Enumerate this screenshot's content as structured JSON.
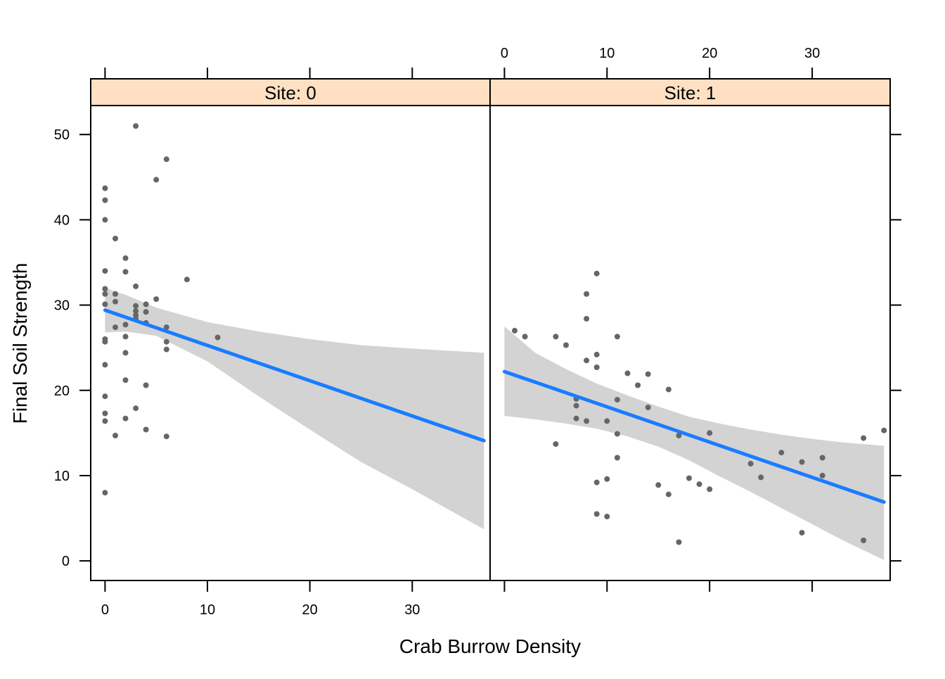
{
  "chart_data": {
    "type": "scatter",
    "xlabel": "Crab Burrow Density",
    "ylabel": "Final Soil Strength",
    "xlim": [
      -1.4,
      37.6
    ],
    "ylim": [
      -2.3,
      53.4
    ],
    "x_ticks": [
      0,
      10,
      20,
      30
    ],
    "y_ticks": [
      0,
      10,
      20,
      30,
      40,
      50
    ],
    "grid": false,
    "strip_color": "#ffe0c2",
    "point_color": "#666666",
    "line_color": "#1a7cff",
    "band_color": "#d3d3d3",
    "panels": [
      {
        "strip_label": "Site: 0",
        "points": [
          [
            0,
            43.7
          ],
          [
            0,
            42.3
          ],
          [
            0,
            40.0
          ],
          [
            0,
            34.0
          ],
          [
            0,
            31.9
          ],
          [
            0,
            31.3
          ],
          [
            0,
            30.1
          ],
          [
            0,
            26.0
          ],
          [
            0,
            25.7
          ],
          [
            0,
            23.0
          ],
          [
            0,
            19.3
          ],
          [
            0,
            17.3
          ],
          [
            0,
            16.4
          ],
          [
            0,
            8.0
          ],
          [
            1,
            37.8
          ],
          [
            1,
            31.3
          ],
          [
            1,
            30.4
          ],
          [
            1,
            27.4
          ],
          [
            1,
            14.7
          ],
          [
            2,
            35.5
          ],
          [
            2,
            33.9
          ],
          [
            2,
            27.7
          ],
          [
            2,
            26.3
          ],
          [
            2,
            24.4
          ],
          [
            2,
            21.2
          ],
          [
            2,
            16.7
          ],
          [
            3,
            51.0
          ],
          [
            3,
            32.2
          ],
          [
            3,
            29.9
          ],
          [
            3,
            29.3
          ],
          [
            3,
            28.8
          ],
          [
            3,
            28.4
          ],
          [
            3,
            17.9
          ],
          [
            4,
            30.1
          ],
          [
            4,
            29.2
          ],
          [
            4,
            27.9
          ],
          [
            4,
            20.6
          ],
          [
            4,
            15.4
          ],
          [
            5,
            44.7
          ],
          [
            5,
            30.7
          ],
          [
            6,
            47.1
          ],
          [
            6,
            27.4
          ],
          [
            6,
            25.7
          ],
          [
            6,
            24.8
          ],
          [
            6,
            14.6
          ],
          [
            8,
            33.0
          ],
          [
            11,
            26.2
          ]
        ],
        "fit": {
          "x": [
            0,
            37
          ],
          "y": [
            29.4,
            14.1
          ]
        },
        "band": {
          "x": [
            0,
            2,
            5,
            10,
            15,
            20,
            25,
            30,
            37
          ],
          "upper": [
            32.0,
            31.2,
            29.7,
            28.0,
            26.9,
            26.0,
            25.3,
            24.9,
            24.4
          ],
          "lower": [
            26.8,
            26.9,
            26.4,
            23.4,
            19.3,
            15.4,
            11.6,
            8.4,
            3.7
          ]
        }
      },
      {
        "strip_label": "Site: 1",
        "points": [
          [
            1,
            27.0
          ],
          [
            2,
            26.3
          ],
          [
            5,
            26.3
          ],
          [
            5,
            13.7
          ],
          [
            6,
            25.3
          ],
          [
            7,
            19.0
          ],
          [
            7,
            18.2
          ],
          [
            7,
            16.7
          ],
          [
            8,
            31.3
          ],
          [
            8,
            28.4
          ],
          [
            8,
            23.5
          ],
          [
            8,
            16.4
          ],
          [
            9,
            33.7
          ],
          [
            9,
            24.2
          ],
          [
            9,
            22.7
          ],
          [
            9,
            9.2
          ],
          [
            9,
            5.5
          ],
          [
            10,
            16.4
          ],
          [
            10,
            9.6
          ],
          [
            10,
            5.2
          ],
          [
            11,
            26.3
          ],
          [
            11,
            18.9
          ],
          [
            11,
            14.9
          ],
          [
            11,
            12.1
          ],
          [
            12,
            22.0
          ],
          [
            13,
            20.6
          ],
          [
            14,
            21.9
          ],
          [
            14,
            18.0
          ],
          [
            15,
            8.9
          ],
          [
            16,
            20.1
          ],
          [
            16,
            7.8
          ],
          [
            17,
            14.7
          ],
          [
            17,
            2.2
          ],
          [
            18,
            9.7
          ],
          [
            19,
            9.0
          ],
          [
            20,
            15.0
          ],
          [
            20,
            8.4
          ],
          [
            24,
            11.4
          ],
          [
            25,
            9.8
          ],
          [
            27,
            12.7
          ],
          [
            29,
            11.6
          ],
          [
            29,
            3.3
          ],
          [
            31,
            12.1
          ],
          [
            31,
            10.0
          ],
          [
            35,
            14.4
          ],
          [
            35,
            2.4
          ],
          [
            37,
            15.3
          ]
        ],
        "fit": {
          "x": [
            0,
            37
          ],
          "y": [
            22.2,
            6.9
          ]
        },
        "band": {
          "x": [
            0,
            3,
            6,
            9,
            12,
            15,
            18,
            21,
            24,
            27,
            30,
            33,
            37
          ],
          "upper": [
            27.5,
            24.4,
            22.5,
            20.8,
            19.4,
            18.1,
            16.9,
            16.1,
            15.4,
            14.8,
            14.3,
            13.9,
            13.5
          ],
          "lower": [
            17.0,
            16.6,
            16.1,
            15.5,
            14.6,
            13.4,
            11.8,
            9.9,
            8.1,
            6.2,
            4.3,
            2.4,
            0.1
          ]
        }
      }
    ]
  }
}
